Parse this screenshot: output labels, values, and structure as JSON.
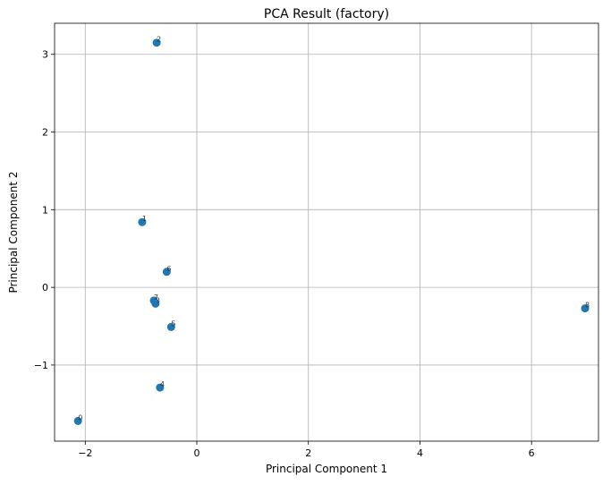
{
  "chart_data": {
    "type": "scatter",
    "title": "PCA Result (factory)",
    "xlabel": "Principal Component 1",
    "ylabel": "Principal Component 2",
    "xlim": [
      -2.55,
      7.2
    ],
    "ylim": [
      -1.98,
      3.4
    ],
    "xticks": [
      -2,
      0,
      2,
      4,
      6
    ],
    "yticks": [
      -1,
      0,
      1,
      2,
      3
    ],
    "grid": true,
    "marker_color": "#1f77b4",
    "points": [
      {
        "label": "0",
        "x": -2.13,
        "y": -1.72
      },
      {
        "label": "1",
        "x": -0.98,
        "y": 0.84
      },
      {
        "label": "2",
        "x": -0.72,
        "y": 3.15
      },
      {
        "label": "3",
        "x": -0.74,
        "y": -0.21
      },
      {
        "label": "4",
        "x": -0.66,
        "y": -1.29
      },
      {
        "label": "5",
        "x": -0.46,
        "y": -0.51
      },
      {
        "label": "6",
        "x": -0.54,
        "y": 0.2
      },
      {
        "label": "7",
        "x": -0.77,
        "y": -0.17
      },
      {
        "label": "8",
        "x": 6.96,
        "y": -0.27
      }
    ]
  }
}
